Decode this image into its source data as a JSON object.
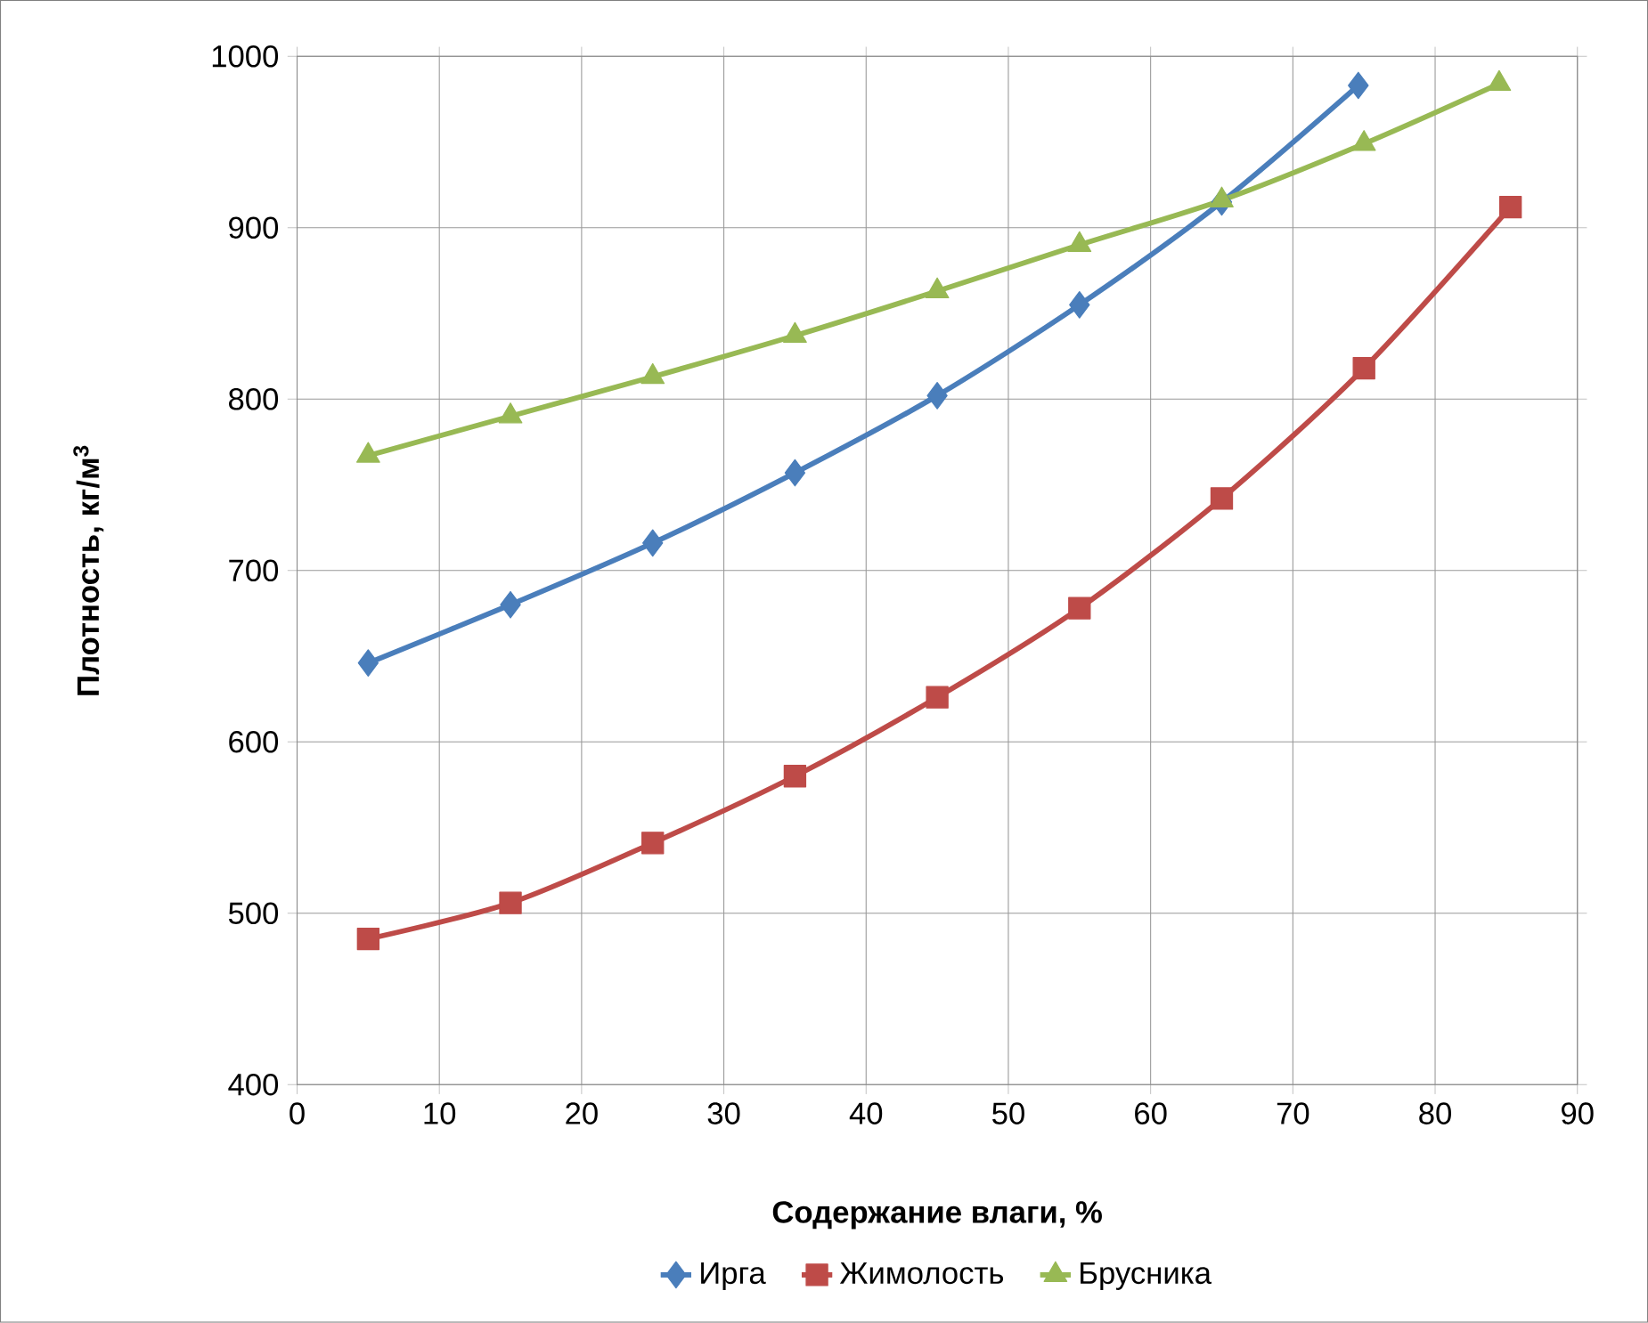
{
  "chart_data": {
    "type": "line",
    "xlabel": "Содержание влаги, %",
    "ylabel": "Плотность, кг/м$^{3}$",
    "xlim": [
      0,
      90
    ],
    "ylim": [
      400,
      1000
    ],
    "xticks": [
      0,
      10,
      20,
      30,
      40,
      50,
      60,
      70,
      80,
      90
    ],
    "yticks": [
      400,
      500,
      600,
      700,
      800,
      900,
      1000
    ],
    "grid": true,
    "legend": "bottom",
    "line_style": "solid",
    "series": [
      {
        "name": "Ирга",
        "color": "#4a7ebb",
        "marker": "diamond",
        "x": [
          5,
          15,
          25,
          35,
          45,
          55,
          65,
          74.6
        ],
        "values": [
          646,
          680,
          716,
          757,
          802,
          855,
          915,
          983
        ]
      },
      {
        "name": "Жимолость",
        "color": "#be4b48",
        "marker": "square",
        "x": [
          5,
          15,
          25,
          35,
          45,
          55,
          65,
          75,
          85.3
        ],
        "values": [
          485,
          506,
          541,
          580,
          626,
          678,
          742,
          818,
          912
        ]
      },
      {
        "name": "Брусника",
        "color": "#98b954",
        "marker": "triangle",
        "x": [
          5,
          15,
          25,
          35,
          45,
          55,
          65,
          75,
          84.5
        ],
        "values": [
          767,
          790,
          813,
          837,
          863,
          890,
          916,
          949,
          984
        ]
      }
    ]
  }
}
